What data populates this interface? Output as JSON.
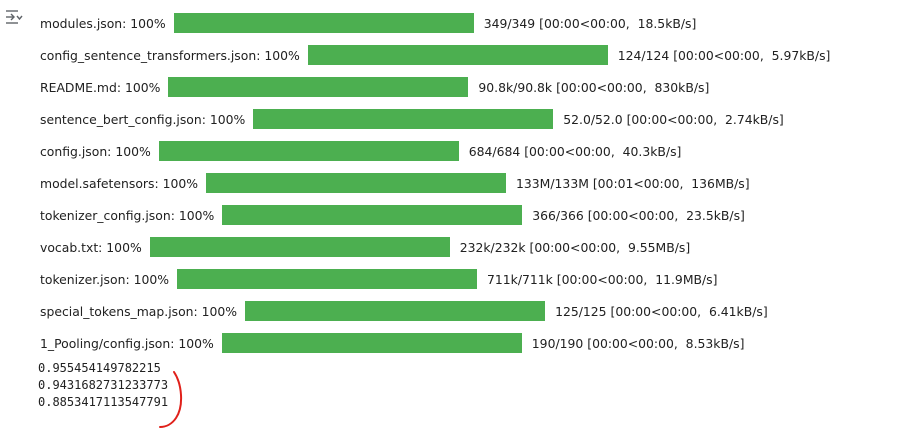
{
  "output_toggle": {
    "icon": "collapse-output-icon"
  },
  "progress_bars": [
    {
      "label": "modules.json: ",
      "percent_text": "100%",
      "fraction": 1.0,
      "counts": "349/349",
      "timing": "[00:00<00:00,  18.5kB/s]"
    },
    {
      "label": "config_sentence_transformers.json: ",
      "percent_text": "100%",
      "fraction": 1.0,
      "counts": "124/124",
      "timing": "[00:00<00:00,  5.97kB/s]"
    },
    {
      "label": "README.md: ",
      "percent_text": "100%",
      "fraction": 1.0,
      "counts": "90.8k/90.8k",
      "timing": "[00:00<00:00,  830kB/s]"
    },
    {
      "label": "sentence_bert_config.json: ",
      "percent_text": "100%",
      "fraction": 1.0,
      "counts": "52.0/52.0",
      "timing": "[00:00<00:00,  2.74kB/s]"
    },
    {
      "label": "config.json: ",
      "percent_text": "100%",
      "fraction": 1.0,
      "counts": "684/684",
      "timing": "[00:00<00:00,  40.3kB/s]"
    },
    {
      "label": "model.safetensors: ",
      "percent_text": "100%",
      "fraction": 1.0,
      "counts": "133M/133M",
      "timing": "[00:01<00:00,  136MB/s]"
    },
    {
      "label": "tokenizer_config.json: ",
      "percent_text": "100%",
      "fraction": 1.0,
      "counts": "366/366",
      "timing": "[00:00<00:00,  23.5kB/s]"
    },
    {
      "label": "vocab.txt: ",
      "percent_text": "100%",
      "fraction": 1.0,
      "counts": "232k/232k",
      "timing": "[00:00<00:00,  9.55MB/s]"
    },
    {
      "label": "tokenizer.json: ",
      "percent_text": "100%",
      "fraction": 1.0,
      "counts": "711k/711k",
      "timing": "[00:00<00:00,  11.9MB/s]"
    },
    {
      "label": "special_tokens_map.json: ",
      "percent_text": "100%",
      "fraction": 1.0,
      "counts": "125/125",
      "timing": "[00:00<00:00,  6.41kB/s]"
    },
    {
      "label": "1_Pooling/config.json: ",
      "percent_text": "100%",
      "fraction": 1.0,
      "counts": "190/190",
      "timing": "[00:00<00:00,  8.53kB/s]"
    }
  ],
  "printed_output": [
    "0.955454149782215",
    "0.9431682731233773",
    "0.8853417113547791"
  ],
  "colors": {
    "bar_fill": "#4caf50",
    "annotation_mark": "#e0201a"
  }
}
